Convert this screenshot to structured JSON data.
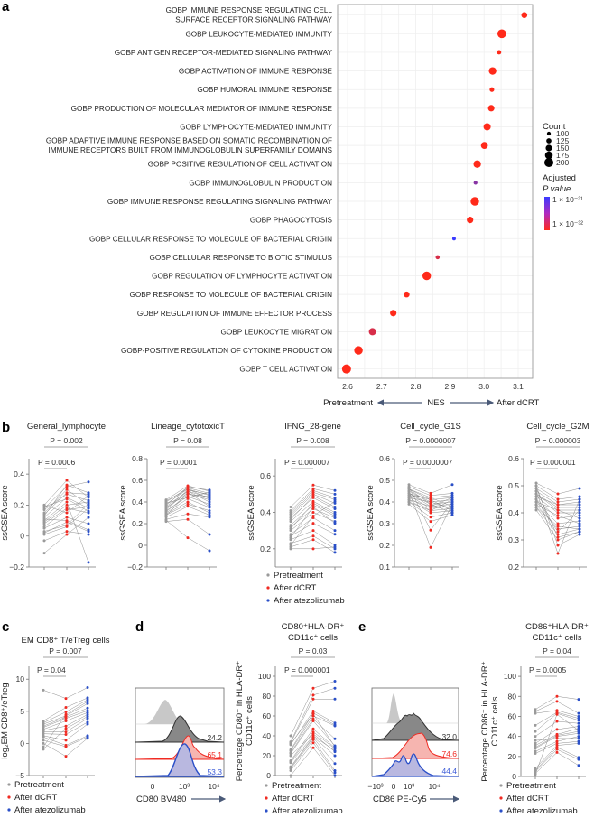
{
  "panel_letters": {
    "a": "a",
    "b": "b",
    "c": "c",
    "d": "d",
    "e": "e"
  },
  "colors": {
    "pretreatment": "#9a9a9a",
    "dcrt": "#f02a22",
    "atezo": "#2a4fc8",
    "padj_high": "#3a3aff",
    "padj_low": "#ff2a1a",
    "line": "#7a7a7a"
  },
  "group_legend": [
    "Pretreatment",
    "After dCRT",
    "After atezolizumab"
  ],
  "chart_data": [
    {
      "type": "scatter",
      "panel": "a",
      "xlabel": "NES",
      "x_left_caption": "Pretreatment",
      "x_right_caption": "After dCRT",
      "xlim": [
        2.6,
        3.12
      ],
      "xticks": [
        "2.6",
        "2.7",
        "2.8",
        "2.9",
        "3.0",
        "3.1"
      ],
      "size_legend_title": "Count",
      "size_legend": [
        100,
        125,
        150,
        175,
        200
      ],
      "color_legend_title": [
        "Adjusted",
        "P value"
      ],
      "color_legend_labels": [
        "1 × 10⁻³¹",
        "1 × 10⁻³²"
      ],
      "terms": [
        {
          "lines": [
            "GOBP IMMUNE RESPONSE REGULATING CELL",
            "SURFACE RECEPTOR SIGNALING PATHWAY"
          ],
          "nes": 3.118,
          "count": 140,
          "padj": 1e-33
        },
        {
          "lines": [
            "GOBP LEUKOCYTE-MEDIATED IMMUNITY"
          ],
          "nes": 3.052,
          "count": 195,
          "padj": 1e-33
        },
        {
          "lines": [
            "GOBP ANTIGEN RECEPTOR-MEDIATED SIGNALING PATHWAY"
          ],
          "nes": 3.044,
          "count": 110,
          "padj": 1e-33
        },
        {
          "lines": [
            "GOBP ACTIVATION OF IMMUNE RESPONSE"
          ],
          "nes": 3.025,
          "count": 170,
          "padj": 1e-33
        },
        {
          "lines": [
            "GOBP HUMORAL IMMUNE RESPONSE"
          ],
          "nes": 3.023,
          "count": 115,
          "padj": 1e-33
        },
        {
          "lines": [
            "GOBP PRODUCTION OF MOLECULAR MEDIATOR OF IMMUNE RESPONSE"
          ],
          "nes": 3.021,
          "count": 150,
          "padj": 1e-33
        },
        {
          "lines": [
            "GOBP LYMPHOCYTE-MEDIATED IMMUNITY"
          ],
          "nes": 3.009,
          "count": 165,
          "padj": 1e-33
        },
        {
          "lines": [
            "GOBP ADAPTIVE IMMUNE RESPONSE BASED ON SOMATIC RECOMBINATION OF",
            "IMMUNE RECEPTORS BUILT FROM IMMUNOGLOBULIN SUPERFAMILY DOMAINS"
          ],
          "nes": 3.001,
          "count": 160,
          "padj": 1e-33
        },
        {
          "lines": [
            "GOBP POSITIVE REGULATION OF CELL ACTIVATION"
          ],
          "nes": 2.98,
          "count": 170,
          "padj": 1e-33
        },
        {
          "lines": [
            "GOBP IMMUNOGLOBULIN PRODUCTION"
          ],
          "nes": 2.975,
          "count": 100,
          "padj": 4e-32
        },
        {
          "lines": [
            "GOBP IMMUNE RESPONSE REGULATING SIGNALING PATHWAY"
          ],
          "nes": 2.973,
          "count": 190,
          "padj": 1e-33
        },
        {
          "lines": [
            "GOBP PHAGOCYTOSIS"
          ],
          "nes": 2.959,
          "count": 150,
          "padj": 1e-33
        },
        {
          "lines": [
            "GOBP CELLULAR RESPONSE TO MOLECULE OF BACTERIAL ORIGIN"
          ],
          "nes": 2.912,
          "count": 95,
          "padj": 1e-31
        },
        {
          "lines": [
            "GOBP CELLULAR RESPONSE TO BIOTIC STIMULUS"
          ],
          "nes": 2.864,
          "count": 105,
          "padj": 1.6e-32
        },
        {
          "lines": [
            "GOBP REGULATION OF LYMPHOCYTE ACTIVATION"
          ],
          "nes": 2.832,
          "count": 190,
          "padj": 1e-33
        },
        {
          "lines": [
            "GOBP RESPONSE TO MOLECULE OF BACTERIAL ORIGIN"
          ],
          "nes": 2.773,
          "count": 140,
          "padj": 1e-33
        },
        {
          "lines": [
            "GOBP REGULATION OF IMMUNE EFFECTOR PROCESS"
          ],
          "nes": 2.734,
          "count": 150,
          "padj": 1e-33
        },
        {
          "lines": [
            "GOBP LEUKOCYTE MIGRATION"
          ],
          "nes": 2.673,
          "count": 165,
          "padj": 1.6e-32
        },
        {
          "lines": [
            "GOBP-POSITIVE REGULATION OF CYTOKINE PRODUCTION"
          ],
          "nes": 2.632,
          "count": 190,
          "padj": 1e-33
        },
        {
          "lines": [
            "GOBP T CELL ACTIVATION"
          ],
          "nes": 2.597,
          "count": 200,
          "padj": 1e-33
        }
      ]
    },
    {
      "type": "scatter",
      "panel": "b",
      "title": "General_lymphocyte",
      "ylabel": "ssGSEA score",
      "p_outer": "P = 0.002",
      "p_inner": "P = 0.0006",
      "ylim": [
        -0.2,
        0.5
      ],
      "yticks": [
        -0.2,
        0,
        0.2,
        0.4
      ],
      "ytick_labels": [
        "−0.2",
        "0",
        "0.2",
        "0.4"
      ],
      "pre": [
        0.2,
        0.18,
        0.15,
        0.14,
        0.12,
        0.1,
        0.09,
        0.08,
        0.2,
        0.05,
        0.02,
        0.01,
        -0.03,
        -0.11,
        0.13,
        0.17,
        0.06,
        0.11,
        0.19,
        0.03
      ],
      "dcrt": [
        0.36,
        0.32,
        0.3,
        0.28,
        0.25,
        0.22,
        0.2,
        0.18,
        0.15,
        0.12,
        0.09,
        0.06,
        0.03,
        0.01,
        0.33,
        0.27,
        0.17,
        0.1,
        0.24,
        0.07
      ],
      "atezo": [
        0.25,
        0.35,
        0.2,
        0.27,
        0.18,
        -0.17,
        0.22,
        0.15,
        0.26,
        0.08,
        0.03,
        0.18,
        0.01,
        0.12,
        0.28,
        0.23,
        0.19,
        0.04,
        0.16,
        0.21
      ]
    },
    {
      "type": "scatter",
      "panel": "b",
      "title": "Lineage_cytotoxicT",
      "ylabel": "ssGSEA score",
      "p_outer": "P = 0.08",
      "p_inner": "P = 0.0001",
      "ylim": [
        -0.2,
        0.8
      ],
      "yticks": [
        -0.2,
        0,
        0.2,
        0.4,
        0.6,
        0.8
      ],
      "ytick_labels": [
        "−0.2",
        "0",
        "0.2",
        "0.4",
        "0.6",
        "0.8"
      ],
      "pre": [
        0.42,
        0.4,
        0.38,
        0.36,
        0.35,
        0.33,
        0.32,
        0.3,
        0.28,
        0.26,
        0.24,
        0.22,
        0.23,
        0.37,
        0.34,
        0.31,
        0.41,
        0.27,
        0.39,
        0.29
      ],
      "dcrt": [
        0.55,
        0.53,
        0.52,
        0.5,
        0.48,
        0.5,
        0.45,
        0.43,
        0.38,
        0.36,
        0.29,
        0.24,
        0.07,
        0.54,
        0.51,
        0.47,
        0.52,
        0.49,
        0.44,
        0.4
      ],
      "atezo": [
        0.5,
        0.48,
        0.46,
        0.44,
        0.42,
        0.4,
        0.38,
        0.35,
        0.32,
        0.28,
        0.26,
        0.1,
        -0.05,
        0.51,
        0.47,
        0.45,
        0.43,
        0.36,
        0.49,
        0.3
      ]
    },
    {
      "type": "scatter",
      "panel": "b",
      "title": "IFNG_28-gene",
      "ylabel": "ssGSEA score",
      "p_outer": "P = 0.008",
      "p_inner": "P = 0.000007",
      "ylim": [
        0.1,
        0.695
      ],
      "yticks": [
        0.2,
        0.4,
        0.6
      ],
      "ytick_labels": [
        "0.2",
        "0.4",
        "0.6"
      ],
      "pre": [
        0.43,
        0.41,
        0.4,
        0.38,
        0.37,
        0.35,
        0.33,
        0.32,
        0.3,
        0.28,
        0.27,
        0.25,
        0.23,
        0.21,
        0.2,
        0.39,
        0.36,
        0.31,
        0.26,
        0.22
      ],
      "dcrt": [
        0.55,
        0.53,
        0.52,
        0.5,
        0.48,
        0.46,
        0.44,
        0.42,
        0.4,
        0.37,
        0.34,
        0.3,
        0.27,
        0.25,
        0.2,
        0.51,
        0.49,
        0.45,
        0.43,
        0.38
      ],
      "atezo": [
        0.52,
        0.5,
        0.48,
        0.45,
        0.42,
        0.4,
        0.38,
        0.37,
        0.35,
        0.3,
        0.28,
        0.22,
        0.2,
        0.18,
        0.21,
        0.47,
        0.43,
        0.39,
        0.34,
        0.46
      ]
    },
    {
      "type": "scatter",
      "panel": "b",
      "title": "Cell_cycle_G1S",
      "ylabel": "ssGSEA score",
      "p_outer": "P = 0.0000007",
      "p_inner": "P = 0.0000007",
      "ylim": [
        0.1,
        0.6
      ],
      "yticks": [
        0.1,
        0.2,
        0.3,
        0.4,
        0.5,
        0.6
      ],
      "ytick_labels": [
        "0.1",
        "0.2",
        "0.3",
        "0.4",
        "0.5",
        "0.6"
      ],
      "pre": [
        0.48,
        0.47,
        0.46,
        0.46,
        0.45,
        0.44,
        0.44,
        0.43,
        0.42,
        0.41,
        0.4,
        0.39,
        0.47,
        0.45,
        0.43,
        0.42,
        0.41,
        0.4,
        0.44,
        0.46
      ],
      "dcrt": [
        0.44,
        0.43,
        0.42,
        0.41,
        0.4,
        0.39,
        0.38,
        0.37,
        0.36,
        0.35,
        0.33,
        0.31,
        0.27,
        0.19,
        0.42,
        0.4,
        0.38,
        0.36,
        0.41,
        0.39
      ],
      "atezo": [
        0.48,
        0.44,
        0.43,
        0.42,
        0.41,
        0.4,
        0.39,
        0.38,
        0.37,
        0.36,
        0.35,
        0.34,
        0.4,
        0.39,
        0.38,
        0.37,
        0.42,
        0.41,
        0.36,
        0.35
      ]
    },
    {
      "type": "scatter",
      "panel": "b",
      "title": "Cell_cycle_G2M",
      "ylabel": "ssGSEA score",
      "p_outer": "P = 0.000003",
      "p_inner": "P = 0.000001",
      "ylim": [
        0.2,
        0.6
      ],
      "yticks": [
        0.2,
        0.3,
        0.4,
        0.5,
        0.6
      ],
      "ytick_labels": [
        "0.2",
        "0.3",
        "0.4",
        "0.5",
        "0.6"
      ],
      "pre": [
        0.51,
        0.5,
        0.49,
        0.48,
        0.47,
        0.47,
        0.46,
        0.45,
        0.44,
        0.43,
        0.42,
        0.41,
        0.5,
        0.48,
        0.46,
        0.44,
        0.43,
        0.42,
        0.45,
        0.49
      ],
      "dcrt": [
        0.47,
        0.45,
        0.44,
        0.43,
        0.42,
        0.41,
        0.4,
        0.38,
        0.36,
        0.34,
        0.32,
        0.3,
        0.28,
        0.25,
        0.43,
        0.41,
        0.39,
        0.35,
        0.33,
        0.31
      ],
      "atezo": [
        0.49,
        0.46,
        0.45,
        0.44,
        0.42,
        0.41,
        0.4,
        0.39,
        0.37,
        0.35,
        0.34,
        0.33,
        0.32,
        0.45,
        0.43,
        0.38,
        0.36,
        0.34,
        0.41,
        0.33
      ]
    },
    {
      "type": "scatter",
      "panel": "c",
      "title": "EM CD8⁺ T/eTreg cells",
      "ylabel": "log₂EM CD8⁺/eTreg",
      "p_outer": "P = 0.007",
      "p_inner": "P = 0.04",
      "ylim": [
        -5,
        12
      ],
      "yticks": [
        -5,
        0,
        5,
        10
      ],
      "ytick_labels": [
        "−5",
        "0",
        "5",
        "10"
      ],
      "pre": [
        8.3,
        3.5,
        3.2,
        3,
        2.7,
        2.5,
        2.2,
        2,
        1.8,
        1.5,
        1.2,
        1,
        0.5,
        0,
        -0.5,
        -0.9
      ],
      "dcrt": [
        7,
        5.6,
        4.9,
        4.3,
        4.1,
        3.9,
        3.5,
        2.7,
        1.8,
        1.4,
        0.5,
        -0.3,
        -0.5,
        -2,
        4.5,
        2.3
      ],
      "atezo": [
        8.7,
        7.1,
        6.8,
        6.2,
        5.5,
        5.1,
        4.8,
        4.5,
        3.9,
        3.3,
        3,
        1.2,
        1,
        0.8,
        6.5,
        4.2
      ]
    },
    {
      "type": "scatter",
      "panel": "d",
      "title": "CD80⁺HLA-DR⁺",
      "title2": "CD11c⁺ cells",
      "ylabel": "Percentage CD80⁺ in HLA-DR⁺",
      "ylabel2": "CD11c⁺ cells",
      "p_outer": "P = 0.03",
      "p_inner": "P = 0.000001",
      "ylim": [
        0,
        110
      ],
      "yticks": [
        0,
        20,
        40,
        60,
        80,
        100
      ],
      "ytick_labels": [
        "0",
        "20",
        "40",
        "60",
        "80",
        "100"
      ],
      "pre": [
        40,
        34,
        33,
        31,
        26,
        25,
        23,
        22,
        15,
        14,
        13,
        9,
        8,
        7,
        5,
        0,
        32,
        20
      ],
      "dcrt": [
        88,
        81,
        77,
        65,
        63,
        60,
        57,
        55,
        47,
        44,
        40,
        39,
        38,
        36,
        33,
        28,
        62,
        42
      ],
      "atezo": [
        95,
        88,
        77,
        53,
        51,
        50,
        37,
        30,
        28,
        27,
        25,
        20,
        12,
        5,
        3,
        0,
        29,
        24
      ]
    },
    {
      "type": "scatter",
      "panel": "e",
      "title": "CD86⁺HLA-DR⁺",
      "title2": "CD11c⁺ cells",
      "ylabel": "Percentage CD86⁺ in HLA-DR⁺",
      "ylabel2": "CD11c⁺ cells",
      "p_outer": "P = 0.04",
      "p_inner": "P = 0.0005",
      "ylim": [
        0,
        110
      ],
      "yticks": [
        0,
        20,
        40,
        60,
        80,
        100
      ],
      "ytick_labels": [
        "0",
        "20",
        "40",
        "60",
        "80",
        "100"
      ],
      "pre": [
        67,
        65,
        63,
        51,
        45,
        40,
        33,
        31,
        29,
        28,
        25,
        23,
        8,
        6,
        5,
        3,
        2,
        36
      ],
      "dcrt": [
        80,
        75,
        66,
        64,
        63,
        55,
        47,
        42,
        41,
        40,
        35,
        33,
        31,
        29,
        27,
        24,
        62,
        38
      ],
      "atezo": [
        77,
        63,
        60,
        58,
        56,
        53,
        50,
        48,
        45,
        43,
        40,
        35,
        33,
        19,
        17,
        11,
        46,
        38
      ]
    }
  ],
  "flow_d": {
    "xlabel": "CD80 BV480",
    "xticks": [
      "0",
      "10³",
      "10⁴"
    ],
    "percentages": [
      "24.2",
      "65.1",
      "53.3"
    ]
  },
  "flow_e": {
    "xlabel": "CD86 PE-Cy5",
    "xticks": [
      "−10³",
      "0",
      "10³",
      "10⁴"
    ],
    "percentages": [
      "32.0",
      "74.6",
      "44.4"
    ]
  }
}
